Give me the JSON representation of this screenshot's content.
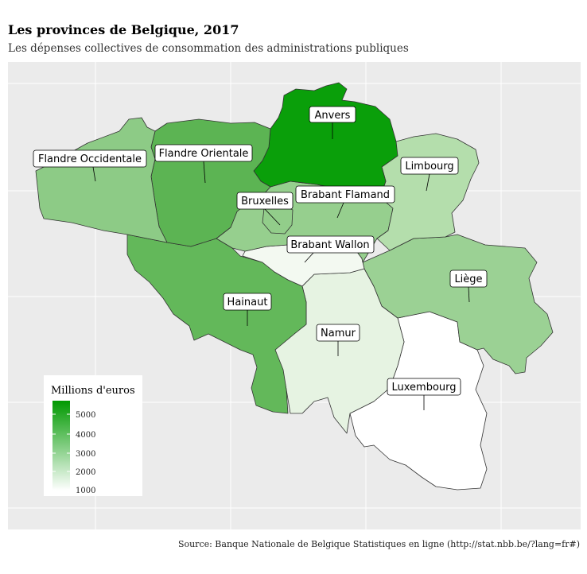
{
  "title": "Les provinces de Belgique, 2017",
  "subtitle": "Les dépenses collectives de consommation des administrations publiques",
  "source": "Source: Banque Nationale de Belgique Statistiques en ligne (http://stat.nbb.be/?lang=fr#)",
  "legend": {
    "title": "Millions d'euros",
    "ticks": [
      "5000",
      "4000",
      "3000",
      "2000",
      "1000"
    ],
    "color_low": "#ffffff",
    "color_high": "#009900"
  },
  "map": {
    "panel_background": "#ebebeb",
    "grid_color": "#ffffff",
    "border_color": "#333333"
  },
  "provinces": [
    {
      "key": "antwerpen",
      "label": "Anvers",
      "fill": "#0a9f0a"
    },
    {
      "key": "west-vlaanderen",
      "label": "Flandre Occidentale",
      "fill": "#8dcb86"
    },
    {
      "key": "oost-vlaanderen",
      "label": "Flandre Orientale",
      "fill": "#5cb453"
    },
    {
      "key": "limburg",
      "label": "Limbourg",
      "fill": "#b4deac"
    },
    {
      "key": "bruxelles",
      "label": "Bruxelles",
      "fill": "#92cd8a"
    },
    {
      "key": "vlaams-brabant",
      "label": "Brabant Flamand",
      "fill": "#96cf8e"
    },
    {
      "key": "brabant-wallon",
      "label": "Brabant Wallon",
      "fill": "#f3f9f1"
    },
    {
      "key": "liege",
      "label": "Liège",
      "fill": "#9bd194"
    },
    {
      "key": "hainaut",
      "label": "Hainaut",
      "fill": "#63b85a"
    },
    {
      "key": "namur",
      "label": "Namur",
      "fill": "#e6f3e2"
    },
    {
      "key": "luxembourg",
      "label": "Luxembourg",
      "fill": "#ffffff"
    }
  ]
}
